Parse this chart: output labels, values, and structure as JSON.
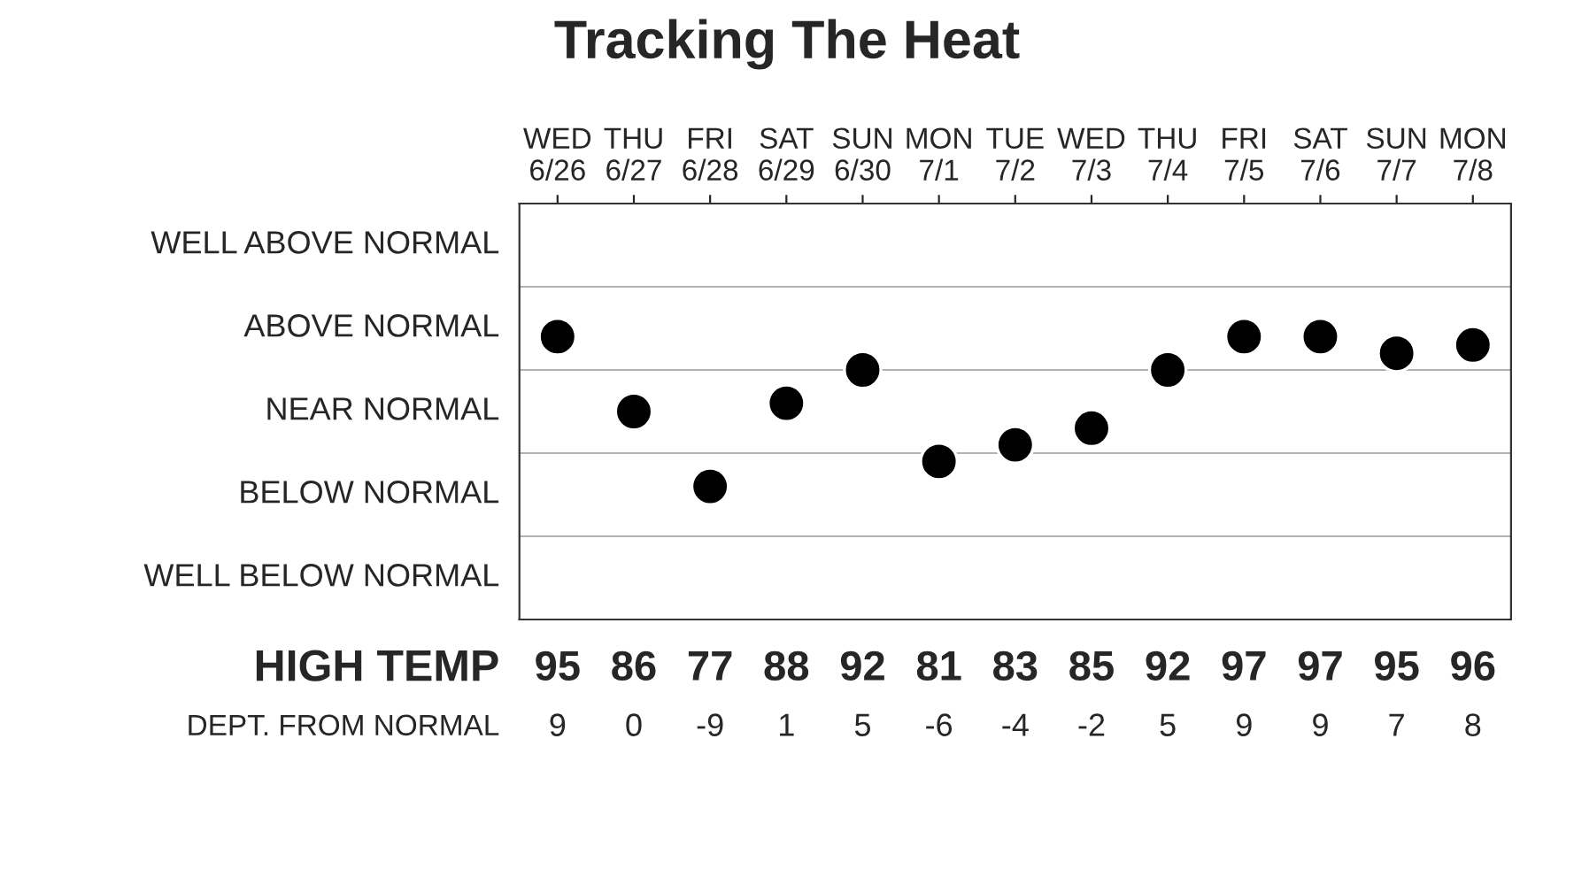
{
  "chart_data": {
    "type": "scatter",
    "title": "Tracking The Heat",
    "categories": [
      "WED\n6/26",
      "THU\n6/27",
      "FRI\n6/28",
      "SAT\n6/29",
      "SUN\n6/30",
      "MON\n7/1",
      "TUE\n7/2",
      "WED\n7/3",
      "THU\n7/4",
      "FRI\n7/5",
      "SAT\n7/6",
      "SUN\n7/7",
      "MON\n7/8"
    ],
    "series": [
      {
        "color": "#000000",
        "values": [
          9,
          0,
          -9,
          1,
          5,
          -6,
          -4,
          -2,
          5,
          9,
          9,
          7,
          8
        ]
      }
    ],
    "data_labels": true,
    "ylim": [
      -25,
      25
    ],
    "marker": "circle",
    "annotations": [
      "WELL ABOVE NORMAL",
      "ABOVE NORMAL",
      "NEAR NORMAL",
      "BELOW NORMAL",
      "WELL BELOW NORMAL",
      "HIGH TEMP",
      "DEPT. FROM NORMAL",
      "95",
      "86",
      "77",
      "88",
      "92",
      "81",
      "83",
      "85",
      "92",
      "97",
      "97",
      "95",
      "96"
    ]
  }
}
